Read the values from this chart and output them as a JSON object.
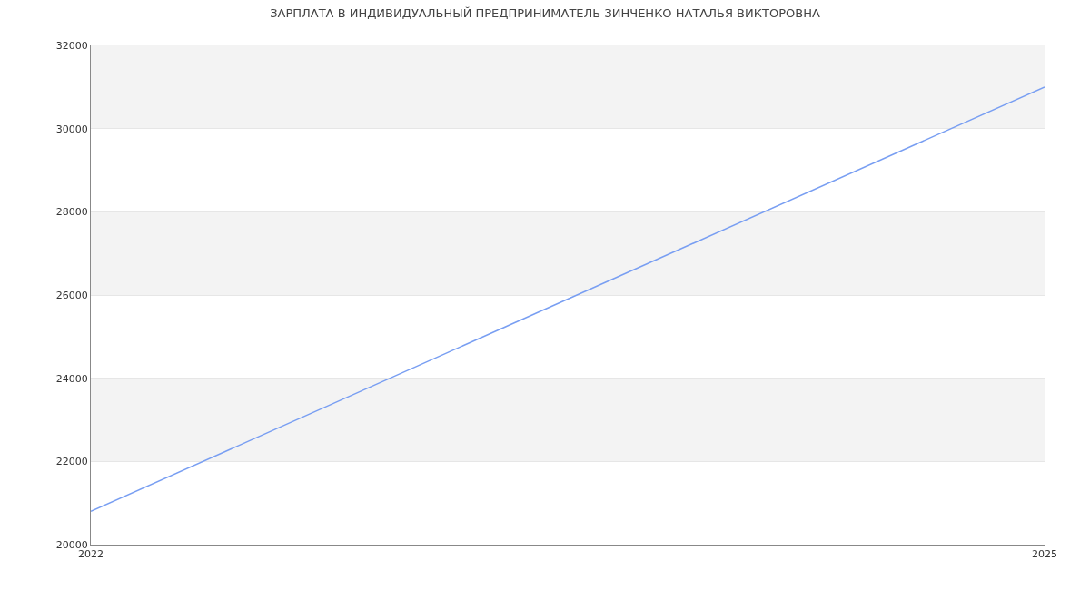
{
  "chart_data": {
    "type": "line",
    "title": "ЗАРПЛАТА В ИНДИВИДУАЛЬНЫЙ ПРЕДПРИНИМАТЕЛЬ ЗИНЧЕНКО НАТАЛЬЯ ВИКТОРОВНА",
    "x": [
      2022,
      2025
    ],
    "series": [
      {
        "color": "#789ef2",
        "values": [
          20800,
          31000
        ]
      }
    ],
    "xlim": [
      2022,
      2025
    ],
    "xticks": [
      2022,
      2025
    ],
    "ylim": [
      20000,
      32000
    ],
    "yticks": [
      20000,
      22000,
      24000,
      26000,
      28000,
      30000,
      32000
    ],
    "grid": "y",
    "marker": "none",
    "line_style": "solid",
    "bands": [
      {
        "axis": "y",
        "from": 22000,
        "to": 24000,
        "color": "#f3f3f3"
      },
      {
        "axis": "y",
        "from": 26000,
        "to": 28000,
        "color": "#f3f3f3"
      },
      {
        "axis": "y",
        "from": 30000,
        "to": 32000,
        "color": "#f3f3f3"
      }
    ]
  }
}
